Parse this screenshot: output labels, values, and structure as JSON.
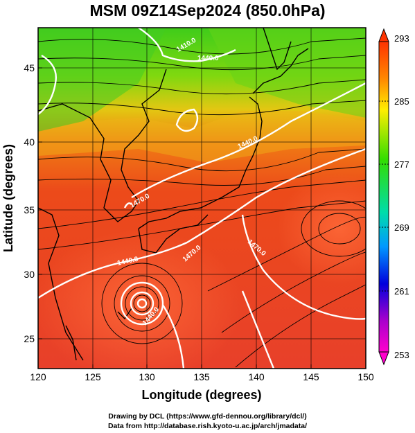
{
  "title": "MSM 09Z14Sep2024 (850.0hPa)",
  "x_axis": {
    "label": "Longitude (degrees)",
    "ticks": [
      "120",
      "125",
      "130",
      "135",
      "140",
      "145",
      "150"
    ]
  },
  "y_axis": {
    "label": "Latitude  (degrees)",
    "ticks": [
      "25",
      "30",
      "35",
      "40",
      "45"
    ]
  },
  "colorbar": {
    "ticks": [
      "293",
      "285",
      "277",
      "269",
      "261",
      "253"
    ],
    "colors": [
      "#ff3300",
      "#ff8800",
      "#ffee00",
      "#33dd00",
      "#00ddaa",
      "#0099ff",
      "#0000dd",
      "#aa00cc",
      "#ff00cc"
    ]
  },
  "contour_labels": [
    "1440.0",
    "1440.0",
    "1440.0",
    "1470.0",
    "1470.0",
    "1440.0",
    "1410.0",
    "1470.0"
  ],
  "credits": {
    "line1": "Drawing by DCL (https://www.gfd-dennou.org/library/dcl/)",
    "line2": "Data from http://database.rish.kyoto-u.ac.jp/arch/jmadata/"
  }
}
